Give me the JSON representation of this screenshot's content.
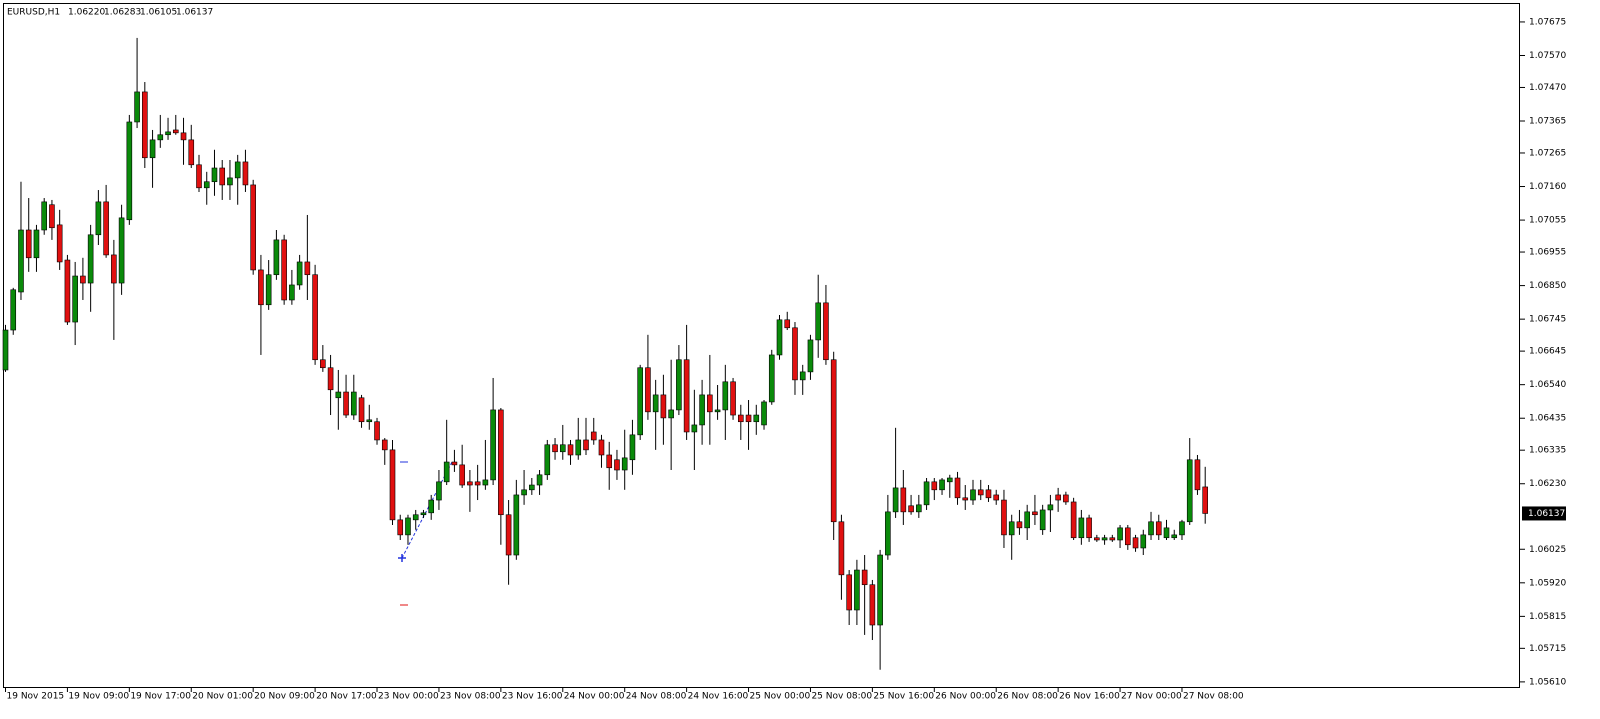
{
  "chart_data": {
    "type": "candlestick",
    "title": "EURUSD,H1",
    "quote_labels": [
      "1.06220",
      "1.06283",
      "1.06105",
      "1.06137"
    ],
    "current_price_label": "1.06137",
    "up_color": "#0a8a0a",
    "down_color": "#e01010",
    "ylim": [
      1.05594,
      1.07728
    ],
    "yticks": [
      {
        "value": 1.07675,
        "label": "1.07675"
      },
      {
        "value": 1.0757,
        "label": "1.07570"
      },
      {
        "value": 1.0747,
        "label": "1.07470"
      },
      {
        "value": 1.07365,
        "label": "1.07365"
      },
      {
        "value": 1.07265,
        "label": "1.07265"
      },
      {
        "value": 1.0716,
        "label": "1.07160"
      },
      {
        "value": 1.07055,
        "label": "1.07055"
      },
      {
        "value": 1.06955,
        "label": "1.06955"
      },
      {
        "value": 1.0685,
        "label": "1.06850"
      },
      {
        "value": 1.06745,
        "label": "1.06745"
      },
      {
        "value": 1.06645,
        "label": "1.06645"
      },
      {
        "value": 1.0654,
        "label": "1.06540"
      },
      {
        "value": 1.06435,
        "label": "1.06435"
      },
      {
        "value": 1.06335,
        "label": "1.06335"
      },
      {
        "value": 1.0623,
        "label": "1.06230"
      },
      {
        "value": 1.06025,
        "label": "1.06025"
      },
      {
        "value": 1.0592,
        "label": "1.05920"
      },
      {
        "value": 1.05815,
        "label": "1.05815"
      },
      {
        "value": 1.05715,
        "label": "1.05715"
      },
      {
        "value": 1.0561,
        "label": "1.05610"
      }
    ],
    "categories": [
      "19 Nov 2015",
      null,
      null,
      null,
      null,
      null,
      null,
      null,
      "19 Nov 09:00",
      null,
      null,
      null,
      null,
      null,
      null,
      null,
      "19 Nov 17:00",
      null,
      null,
      null,
      null,
      null,
      null,
      null,
      "20 Nov 01:00",
      null,
      null,
      null,
      null,
      null,
      null,
      null,
      "20 Nov 09:00",
      null,
      null,
      null,
      null,
      null,
      null,
      null,
      "20 Nov 17:00",
      null,
      null,
      null,
      null,
      null,
      null,
      null,
      "23 Nov 00:00",
      null,
      null,
      null,
      null,
      null,
      null,
      null,
      "23 Nov 08:00",
      null,
      null,
      null,
      null,
      null,
      null,
      null,
      "23 Nov 16:00",
      null,
      null,
      null,
      null,
      null,
      null,
      null,
      "24 Nov 00:00",
      null,
      null,
      null,
      null,
      null,
      null,
      null,
      "24 Nov 08:00",
      null,
      null,
      null,
      null,
      null,
      null,
      null,
      "24 Nov 16:00",
      null,
      null,
      null,
      null,
      null,
      null,
      null,
      "25 Nov 00:00",
      null,
      null,
      null,
      null,
      null,
      null,
      null,
      "25 Nov 08:00",
      null,
      null,
      null,
      null,
      null,
      null,
      null,
      "25 Nov 16:00",
      null,
      null,
      null,
      null,
      null,
      null,
      null,
      "26 Nov 00:00",
      null,
      null,
      null,
      null,
      null,
      null,
      null,
      "26 Nov 08:00",
      null,
      null,
      null,
      null,
      null,
      null,
      null,
      "26 Nov 16:00",
      null,
      null,
      null,
      null,
      null,
      null,
      null,
      "27 Nov 00:00",
      null,
      null,
      null,
      null,
      null,
      null,
      null,
      "27 Nov 08:00",
      null,
      null,
      null
    ],
    "open": [
      1.06586,
      1.06711,
      1.0683,
      1.07024,
      1.06937,
      1.07024,
      1.07103,
      1.0704,
      1.0693,
      1.06736,
      1.0688,
      1.06858,
      1.07009,
      1.07112,
      1.06946,
      1.06858,
      1.07056,
      1.07362,
      1.07456,
      1.0725,
      1.07306,
      1.07322,
      1.07337,
      1.07328,
      1.07306,
      1.07228,
      1.07156,
      1.07175,
      1.07218,
      1.07165,
      1.07187,
      1.07237,
      1.07165,
      1.06899,
      1.0679,
      1.06884,
      1.06993,
      1.06805,
      1.06852,
      1.06924,
      1.06884,
      1.06618,
      1.06593,
      1.06499,
      1.06517,
      1.06445,
      1.06499,
      1.06424,
      1.06424,
      1.06367,
      1.06336,
      1.06117,
      1.0607,
      1.06117,
      1.06133,
      1.06139,
      1.06179,
      1.06236,
      1.06298,
      1.06289,
      1.06236,
      1.06236,
      1.06226,
      1.06242,
      1.06461,
      1.06133,
      1.06007,
      1.06195,
      1.06211,
      1.06226,
      1.06258,
      1.06352,
      1.0633,
      1.06352,
      1.0632,
      1.06367,
      1.06392,
      1.06367,
      1.0632,
      1.06305,
      1.06273,
      1.06305,
      1.06383,
      1.06593,
      1.06455,
      1.06508,
      1.06436,
      1.06461,
      1.06618,
      1.06392,
      1.06414,
      1.06508,
      1.06455,
      1.06461,
      1.06549,
      1.06445,
      1.06445,
      1.06424,
      1.06414,
      1.06486,
      1.06633,
      1.06743,
      1.06718,
      1.06555,
      1.0658,
      1.0668,
      1.06796,
      1.06618,
      1.06111,
      1.05945,
      1.05835,
      1.0596,
      1.05914,
      1.05788,
      1.06007,
      1.06142,
      1.06217,
      1.06161,
      1.06142,
      1.06164,
      1.06236,
      1.06211,
      1.06236,
      1.06248,
      1.06186,
      1.06179,
      1.06211,
      1.06211,
      1.06195,
      1.06179,
      1.0607,
      1.06111,
      1.06092,
      1.06142,
      1.06086,
      1.06148,
      1.06195,
      1.06195,
      1.06173,
      1.06061,
      1.06123,
      1.06061,
      1.06054,
      1.06061,
      1.06054,
      1.06092,
      1.06061,
      1.06029,
      1.0607,
      1.06111,
      1.06061,
      1.06061,
      1.0607,
      1.06111,
      1.06305,
      1.0622
    ],
    "high": [
      1.06727,
      1.06843,
      1.07175,
      1.07124,
      1.0704,
      1.07124,
      1.07118,
      1.07087,
      1.06946,
      1.06924,
      1.06937,
      1.0704,
      1.07149,
      1.07165,
      1.06993,
      1.07103,
      1.07384,
      1.07625,
      1.07487,
      1.07337,
      1.07384,
      1.07375,
      1.07384,
      1.07375,
      1.07353,
      1.07259,
      1.07206,
      1.07275,
      1.07243,
      1.07243,
      1.07259,
      1.07275,
      1.07181,
      1.06946,
      1.0693,
      1.07024,
      1.07009,
      1.06899,
      1.06946,
      1.07071,
      1.06915,
      1.06664,
      1.06633,
      1.06586,
      1.06571,
      1.06571,
      1.06508,
      1.06477,
      1.06436,
      1.06373,
      1.06367,
      1.06133,
      1.06133,
      1.06148,
      1.06148,
      1.06195,
      1.06273,
      1.0643,
      1.06336,
      1.06352,
      1.06273,
      1.06289,
      1.06367,
      1.06561,
      1.06467,
      1.06179,
      1.06242,
      1.06273,
      1.06248,
      1.06273,
      1.06367,
      1.06373,
      1.06414,
      1.06367,
      1.06436,
      1.06436,
      1.06436,
      1.06383,
      1.06361,
      1.06336,
      1.06399,
      1.0643,
      1.06602,
      1.06696,
      1.06555,
      1.06571,
      1.06618,
      1.06664,
      1.06727,
      1.06524,
      1.06555,
      1.06633,
      1.06539,
      1.06602,
      1.06561,
      1.06477,
      1.06492,
      1.06477,
      1.06492,
      1.06649,
      1.06758,
      1.06768,
      1.06736,
      1.06602,
      1.06696,
      1.06884,
      1.06852,
      1.06643,
      1.06133,
      1.0596,
      1.05992,
      1.06007,
      1.05929,
      1.06023,
      1.06195,
      1.06405,
      1.06273,
      1.06195,
      1.06195,
      1.06248,
      1.06248,
      1.06248,
      1.06258,
      1.06267,
      1.06226,
      1.06242,
      1.06242,
      1.06226,
      1.06211,
      1.06211,
      1.06133,
      1.06148,
      1.06164,
      1.06195,
      1.06164,
      1.06195,
      1.06217,
      1.06205,
      1.06186,
      1.06148,
      1.06133,
      1.0607,
      1.0607,
      1.0607,
      1.06101,
      1.06101,
      1.0607,
      1.06086,
      1.06142,
      1.06133,
      1.06117,
      1.06086,
      1.06117,
      1.06373,
      1.0632,
      1.06283
    ],
    "low": [
      1.0658,
      1.06696,
      1.06805,
      1.06893,
      1.06893,
      1.07009,
      1.06993,
      1.06899,
      1.06727,
      1.06664,
      1.06805,
      1.06768,
      1.06977,
      1.06937,
      1.0668,
      1.06821,
      1.0704,
      1.07343,
      1.07218,
      1.07156,
      1.07281,
      1.07306,
      1.07322,
      1.07228,
      1.07218,
      1.07143,
      1.07103,
      1.07131,
      1.07118,
      1.07118,
      1.07103,
      1.07143,
      1.06884,
      1.06633,
      1.06774,
      1.06868,
      1.0679,
      1.0679,
      1.06837,
      1.06805,
      1.06602,
      1.0658,
      1.06445,
      1.06399,
      1.06436,
      1.0643,
      1.06405,
      1.06399,
      1.06352,
      1.06289,
      1.06101,
      1.06054,
      1.06039,
      1.06086,
      1.06123,
      1.06117,
      1.06148,
      1.06226,
      1.06267,
      1.06217,
      1.06142,
      1.06179,
      1.06211,
      1.06226,
      1.06039,
      1.05914,
      1.05992,
      1.06164,
      1.06195,
      1.06195,
      1.06242,
      1.06305,
      1.06305,
      1.06289,
      1.06305,
      1.0632,
      1.06352,
      1.0628,
      1.06211,
      1.06242,
      1.06211,
      1.06258,
      1.06367,
      1.0643,
      1.06336,
      1.06352,
      1.06273,
      1.06445,
      1.06367,
      1.06273,
      1.06352,
      1.06352,
      1.0643,
      1.06367,
      1.0643,
      1.06367,
      1.06336,
      1.06383,
      1.06399,
      1.06477,
      1.06618,
      1.06711,
      1.06508,
      1.06508,
      1.06555,
      1.06624,
      1.06602,
      1.06054,
      1.05867,
      1.05788,
      1.05788,
      1.05757,
      1.05741,
      1.05648,
      1.05992,
      1.06123,
      1.06101,
      1.06133,
      1.06123,
      1.06148,
      1.06179,
      1.06195,
      1.06186,
      1.06164,
      1.06148,
      1.06164,
      1.06179,
      1.06173,
      1.06164,
      1.06029,
      1.05992,
      1.0607,
      1.06054,
      1.06101,
      1.0607,
      1.06079,
      1.06142,
      1.06164,
      1.06054,
      1.06039,
      1.06048,
      1.06048,
      1.06039,
      1.06048,
      1.06029,
      1.06023,
      1.06017,
      1.06007,
      1.06054,
      1.06054,
      1.06054,
      1.06054,
      1.06054,
      1.06101,
      1.06195,
      1.06105
    ],
    "close": [
      1.06711,
      1.06837,
      1.07024,
      1.06937,
      1.07024,
      1.07112,
      1.07031,
      1.06924,
      1.06736,
      1.0688,
      1.06858,
      1.07009,
      1.07112,
      1.06946,
      1.06858,
      1.07062,
      1.07362,
      1.07456,
      1.0725,
      1.07306,
      1.07322,
      1.07331,
      1.07328,
      1.07306,
      1.07228,
      1.07156,
      1.07175,
      1.07218,
      1.07165,
      1.07187,
      1.07237,
      1.07165,
      1.06899,
      1.0679,
      1.06884,
      1.06993,
      1.06805,
      1.06852,
      1.06924,
      1.06884,
      1.06618,
      1.06593,
      1.06524,
      1.06517,
      1.06445,
      1.06517,
      1.06424,
      1.0643,
      1.06367,
      1.06336,
      1.06117,
      1.0607,
      1.06123,
      1.06133,
      1.06139,
      1.06179,
      1.06236,
      1.06298,
      1.06289,
      1.06226,
      1.06226,
      1.06226,
      1.06242,
      1.06461,
      1.06133,
      1.06007,
      1.06195,
      1.06211,
      1.06226,
      1.06258,
      1.06352,
      1.0633,
      1.06352,
      1.0632,
      1.06367,
      1.06336,
      1.06367,
      1.0632,
      1.0628,
      1.06273,
      1.06311,
      1.06383,
      1.06593,
      1.06455,
      1.06508,
      1.06436,
      1.06461,
      1.06618,
      1.06392,
      1.06414,
      1.06508,
      1.06455,
      1.06461,
      1.06549,
      1.06445,
      1.06424,
      1.06424,
      1.06445,
      1.06486,
      1.06633,
      1.06743,
      1.06718,
      1.06555,
      1.0658,
      1.0668,
      1.06796,
      1.06618,
      1.06111,
      1.05945,
      1.05835,
      1.0596,
      1.05914,
      1.05788,
      1.06007,
      1.06142,
      1.06217,
      1.06142,
      1.06142,
      1.06164,
      1.06236,
      1.06211,
      1.06242,
      1.06248,
      1.06186,
      1.06179,
      1.06211,
      1.06195,
      1.06186,
      1.06179,
      1.0607,
      1.06111,
      1.06092,
      1.06142,
      1.06133,
      1.06148,
      1.06164,
      1.06179,
      1.06173,
      1.06061,
      1.06123,
      1.06061,
      1.06054,
      1.06061,
      1.06054,
      1.06092,
      1.06039,
      1.06029,
      1.0607,
      1.06111,
      1.0607,
      1.06092,
      1.0607,
      1.06111,
      1.06305,
      1.06211,
      1.06137
    ]
  }
}
